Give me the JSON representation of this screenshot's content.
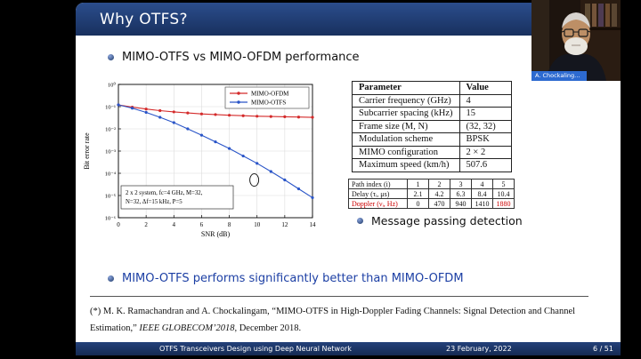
{
  "colors": {
    "structure_blue": "#1d3866",
    "highlight_red": "#cc0000",
    "ofdm_red": "#d42a2a",
    "otfs_blue": "#2a55c8",
    "conclusion_blue": "#1c3fa4"
  },
  "slide": {
    "title": "Why OTFS?",
    "bullets": {
      "performance": "MIMO-OTFS vs MIMO-OFDM performance",
      "message_passing": "Message passing detection",
      "conclusion": "MIMO-OTFS performs significantly better than MIMO-OFDM"
    },
    "footnote": {
      "prefix": "(*) M. K. Ramachandran and A. Chockalingam, “MIMO-OTFS in High-Doppler Fading Channels: Signal Detection and Channel Estimation,” ",
      "venue": "IEEE GLOBECOM’2018",
      "suffix": ", December 2018."
    },
    "footer": {
      "title": "OTFS Transceivers Design using Deep Neural Network",
      "date": "23 February, 2022",
      "page": "6 / 51"
    }
  },
  "param_table": {
    "headers": [
      "Parameter",
      "Value"
    ],
    "rows": [
      [
        "Carrier frequency (GHz)",
        "4"
      ],
      [
        "Subcarrier spacing (kHz)",
        "15"
      ],
      [
        "Frame size (M, N)",
        "(32, 32)"
      ],
      [
        "Modulation scheme",
        "BPSK"
      ],
      [
        "MIMO configuration",
        "2 × 2"
      ],
      [
        "Maximum speed (km/h)",
        "507.6"
      ]
    ]
  },
  "path_table": {
    "rows": [
      {
        "label": "Path index (i)",
        "values": [
          "1",
          "2",
          "3",
          "4",
          "5"
        ],
        "highlight": false
      },
      {
        "label": "Delay (τᵢ, μs)",
        "values": [
          "2.1",
          "4.2",
          "6.3",
          "8.4",
          "10.4"
        ],
        "highlight": false
      },
      {
        "label": "Doppler (νᵢ, Hz)",
        "values": [
          "0",
          "470",
          "940",
          "1410",
          "1880"
        ],
        "highlight": true
      }
    ]
  },
  "chart_data": {
    "type": "line",
    "title": "",
    "xlabel": "SNR (dB)",
    "ylabel": "Bit error rate",
    "x_range": [
      0,
      14
    ],
    "x_ticks": [
      0,
      2,
      4,
      6,
      8,
      10,
      12,
      14
    ],
    "y_scale": "log",
    "y_ticks_exp": [
      0,
      -1,
      -2,
      -3,
      -4,
      -5,
      -6
    ],
    "y_tick_labels": [
      "10⁰",
      "10⁻¹",
      "10⁻²",
      "10⁻³",
      "10⁻⁴",
      "10⁻⁵",
      "10⁻⁶"
    ],
    "grid": true,
    "legend_position": "top-right",
    "annotation_box": "2 x 2 system, fc=4 GHz, M=32,\nN=32, Δf=15 kHz, P=5",
    "circle_annotation": {
      "x": 9.8,
      "y": 5e-05
    },
    "series": [
      {
        "name": "MIMO-OFDM",
        "color": "#d42a2a",
        "x": [
          0,
          1,
          2,
          3,
          4,
          5,
          6,
          7,
          8,
          9,
          10,
          11,
          12,
          13,
          14
        ],
        "y": [
          0.12,
          0.095,
          0.078,
          0.066,
          0.058,
          0.052,
          0.047,
          0.044,
          0.041,
          0.039,
          0.037,
          0.036,
          0.035,
          0.034,
          0.033
        ]
      },
      {
        "name": "MIMO-OTFS",
        "color": "#2a55c8",
        "x": [
          0,
          1,
          2,
          3,
          4,
          5,
          6,
          7,
          8,
          9,
          10,
          11,
          12,
          13,
          14
        ],
        "y": [
          0.12,
          0.085,
          0.055,
          0.033,
          0.019,
          0.01,
          0.0052,
          0.0026,
          0.0013,
          0.0006,
          0.00028,
          0.00012,
          5e-05,
          2e-05,
          8e-06
        ]
      }
    ]
  },
  "webcam": {
    "name_label": "A. Chockalingam"
  }
}
